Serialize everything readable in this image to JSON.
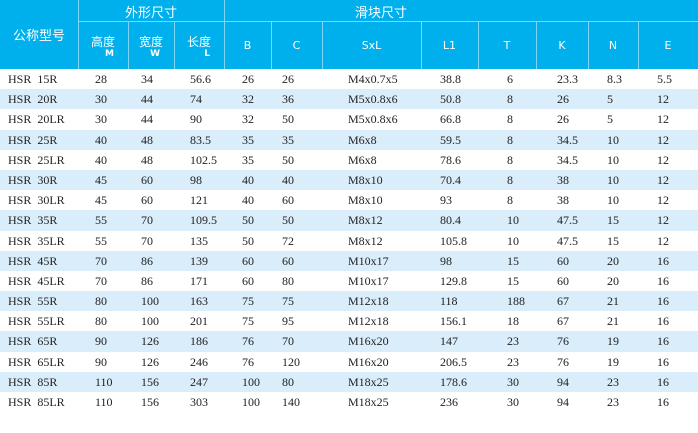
{
  "header": {
    "model": "公称型号",
    "outer_group": "外形尺寸",
    "block_group": "滑块尺寸",
    "height": {
      "label": "高度",
      "sym": "M"
    },
    "width": {
      "label": "宽度",
      "sym": "W"
    },
    "length": {
      "label": "长度",
      "sym": "L"
    },
    "block_cols": [
      "B",
      "C",
      "SxL",
      "L1",
      "T",
      "K",
      "N",
      "E"
    ]
  },
  "colors": {
    "header_bg": "#00b0ec",
    "stripe": "#d9edfb"
  },
  "rows": [
    [
      "HSR  15R",
      "28",
      "34",
      "56.6",
      "26",
      "26",
      "M4x0.7x5",
      "38.8",
      "6",
      "23.3",
      "8.3",
      "5.5"
    ],
    [
      "HSR  20R",
      "30",
      "44",
      "74",
      "32",
      "36",
      "M5x0.8x6",
      "50.8",
      "8",
      "26",
      "5",
      "12"
    ],
    [
      "HSR  20LR",
      "30",
      "44",
      "90",
      "32",
      "50",
      "M5x0.8x6",
      "66.8",
      "8",
      "26",
      "5",
      "12"
    ],
    [
      "HSR  25R",
      "40",
      "48",
      "83.5",
      "35",
      "35",
      "M6x8",
      "59.5",
      "8",
      "34.5",
      "10",
      "12"
    ],
    [
      "HSR  25LR",
      "40",
      "48",
      "102.5",
      "35",
      "50",
      "M6x8",
      "78.6",
      "8",
      "34.5",
      "10",
      "12"
    ],
    [
      "HSR  30R",
      "45",
      "60",
      "98",
      "40",
      "40",
      "M8x10",
      "70.4",
      "8",
      "38",
      "10",
      "12"
    ],
    [
      "HSR  30LR",
      "45",
      "60",
      "121",
      "40",
      "60",
      "M8x10",
      "93",
      "8",
      "38",
      "10",
      "12"
    ],
    [
      "HSR  35R",
      "55",
      "70",
      "109.5",
      "50",
      "50",
      "M8x12",
      "80.4",
      "10",
      "47.5",
      "15",
      "12"
    ],
    [
      "HSR  35LR",
      "55",
      "70",
      "135",
      "50",
      "72",
      "M8x12",
      "105.8",
      "10",
      "47.5",
      "15",
      "12"
    ],
    [
      "HSR  45R",
      "70",
      "86",
      "139",
      "60",
      "60",
      "M10x17",
      "98",
      "15",
      "60",
      "20",
      "16"
    ],
    [
      "HSR  45LR",
      "70",
      "86",
      "171",
      "60",
      "80",
      "M10x17",
      "129.8",
      "15",
      "60",
      "20",
      "16"
    ],
    [
      "HSR  55R",
      "80",
      "100",
      "163",
      "75",
      "75",
      "M12x18",
      "118",
      "188",
      "67",
      "21",
      "16"
    ],
    [
      "HSR  55LR",
      "80",
      "100",
      "201",
      "75",
      "95",
      "M12x18",
      "156.1",
      "18",
      "67",
      "21",
      "16"
    ],
    [
      "HSR  65R",
      "90",
      "126",
      "186",
      "76",
      "70",
      "M16x20",
      "147",
      "23",
      "76",
      "19",
      "16"
    ],
    [
      "HSR  65LR",
      "90",
      "126",
      "246",
      "76",
      "120",
      "M16x20",
      "206.5",
      "23",
      "76",
      "19",
      "16"
    ],
    [
      "HSR  85R",
      "110",
      "156",
      "247",
      "100",
      "80",
      "M18x25",
      "178.6",
      "30",
      "94",
      "23",
      "16"
    ],
    [
      "HSR  85LR",
      "110",
      "156",
      "303",
      "100",
      "140",
      "M18x25",
      "236",
      "30",
      "94",
      "23",
      "16"
    ]
  ]
}
